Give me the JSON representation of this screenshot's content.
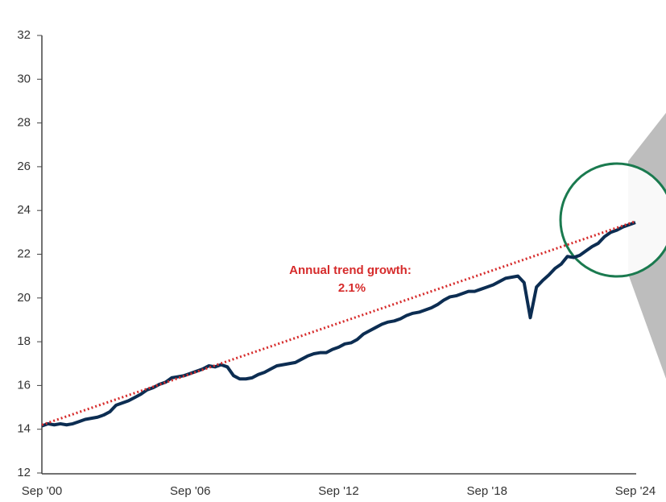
{
  "chart_data": {
    "type": "line",
    "annotation": [
      "Annual trend growth:",
      "2.1%"
    ],
    "categories": [
      "Sep '00",
      null,
      null,
      null,
      null,
      null,
      null,
      null,
      null,
      null,
      null,
      null,
      null,
      null,
      null,
      null,
      null,
      null,
      null,
      null,
      null,
      null,
      null,
      null,
      "Sep '06",
      null,
      null,
      null,
      null,
      null,
      null,
      null,
      null,
      null,
      null,
      null,
      null,
      null,
      null,
      null,
      null,
      null,
      null,
      null,
      null,
      null,
      null,
      null,
      "Sep '12",
      null,
      null,
      null,
      null,
      null,
      null,
      null,
      null,
      null,
      null,
      null,
      null,
      null,
      null,
      null,
      null,
      null,
      null,
      null,
      null,
      null,
      null,
      null,
      "Sep '18",
      null,
      null,
      null,
      null,
      null,
      null,
      null,
      null,
      null,
      null,
      null,
      null,
      null,
      null,
      null,
      null,
      null,
      null,
      null,
      null,
      null,
      null,
      null,
      "Sep '24"
    ],
    "series": [
      {
        "color": "#0c2d52",
        "values": [
          14.15,
          14.25,
          14.2,
          14.25,
          14.2,
          14.25,
          14.35,
          14.45,
          14.5,
          14.55,
          14.65,
          14.8,
          15.1,
          15.2,
          15.3,
          15.45,
          15.6,
          15.8,
          15.9,
          16.05,
          16.15,
          16.35,
          16.4,
          16.45,
          16.55,
          16.65,
          16.75,
          16.9,
          16.85,
          16.95,
          16.85,
          16.45,
          16.3,
          16.3,
          16.35,
          16.5,
          16.6,
          16.75,
          16.9,
          16.95,
          17.0,
          17.05,
          17.2,
          17.35,
          17.45,
          17.5,
          17.5,
          17.65,
          17.75,
          17.9,
          17.95,
          18.1,
          18.35,
          18.5,
          18.65,
          18.8,
          18.9,
          18.95,
          19.05,
          19.2,
          19.3,
          19.35,
          19.45,
          19.55,
          19.7,
          19.9,
          20.05,
          20.1,
          20.2,
          20.3,
          20.3,
          20.4,
          20.5,
          20.6,
          20.75,
          20.9,
          20.95,
          21.0,
          20.7,
          19.1,
          20.5,
          20.8,
          21.05,
          21.35,
          21.55,
          21.9,
          21.85,
          21.95,
          22.15,
          22.35,
          22.5,
          22.8,
          23.0,
          23.1,
          23.25,
          23.35,
          23.45
        ]
      }
    ],
    "trend": {
      "color": "#d62b2b",
      "start": 14.2,
      "end": 23.5
    },
    "ylim": [
      12,
      32
    ],
    "yticks": [
      12,
      14,
      16,
      18,
      20,
      22,
      24,
      26,
      28,
      30,
      32
    ]
  }
}
